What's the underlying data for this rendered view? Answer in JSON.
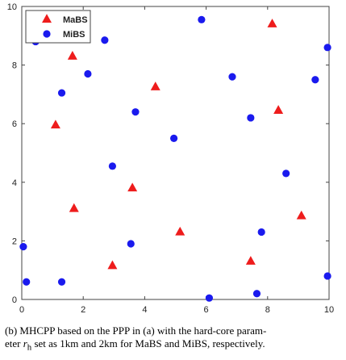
{
  "chart_data": {
    "type": "scatter",
    "title": "",
    "xlabel": "",
    "ylabel": "",
    "xlim": [
      0,
      10
    ],
    "ylim": [
      0,
      10
    ],
    "xticks": [
      "0",
      "2",
      "4",
      "6",
      "8",
      "10"
    ],
    "yticks": [
      "0",
      "2",
      "4",
      "6",
      "8",
      "10"
    ],
    "grid": false,
    "legend_position": "top-left",
    "series": [
      {
        "name": "MaBS",
        "marker": "triangle",
        "color": "#ee1c1c",
        "points": [
          [
            8.15,
            9.4
          ],
          [
            1.65,
            8.3
          ],
          [
            4.35,
            7.25
          ],
          [
            1.1,
            5.95
          ],
          [
            8.35,
            6.45
          ],
          [
            3.6,
            3.8
          ],
          [
            1.7,
            3.1
          ],
          [
            5.15,
            2.3
          ],
          [
            9.1,
            2.85
          ],
          [
            2.95,
            1.15
          ],
          [
            7.45,
            1.3
          ]
        ]
      },
      {
        "name": "MiBS",
        "marker": "circle",
        "color": "#1a1aee",
        "points": [
          [
            5.85,
            9.55
          ],
          [
            0.45,
            8.8
          ],
          [
            2.7,
            8.85
          ],
          [
            9.95,
            8.6
          ],
          [
            2.15,
            7.7
          ],
          [
            6.85,
            7.6
          ],
          [
            9.55,
            7.5
          ],
          [
            1.3,
            7.05
          ],
          [
            3.7,
            6.4
          ],
          [
            7.45,
            6.2
          ],
          [
            4.95,
            5.5
          ],
          [
            2.95,
            4.55
          ],
          [
            8.6,
            4.3
          ],
          [
            3.55,
            1.9
          ],
          [
            7.8,
            2.3
          ],
          [
            0.05,
            1.8
          ],
          [
            0.15,
            0.6
          ],
          [
            1.3,
            0.6
          ],
          [
            9.95,
            0.8
          ],
          [
            7.65,
            0.2
          ],
          [
            6.1,
            0.05
          ]
        ]
      }
    ]
  },
  "caption": {
    "line1": "(b) MHCPP based on the PPP in (a) with the hard-core param-",
    "line2_pre": "eter ",
    "line2_var": "r",
    "line2_sub": "h",
    "line2_post": " set as 1km and 2km for MaBS and MiBS, respectively."
  }
}
